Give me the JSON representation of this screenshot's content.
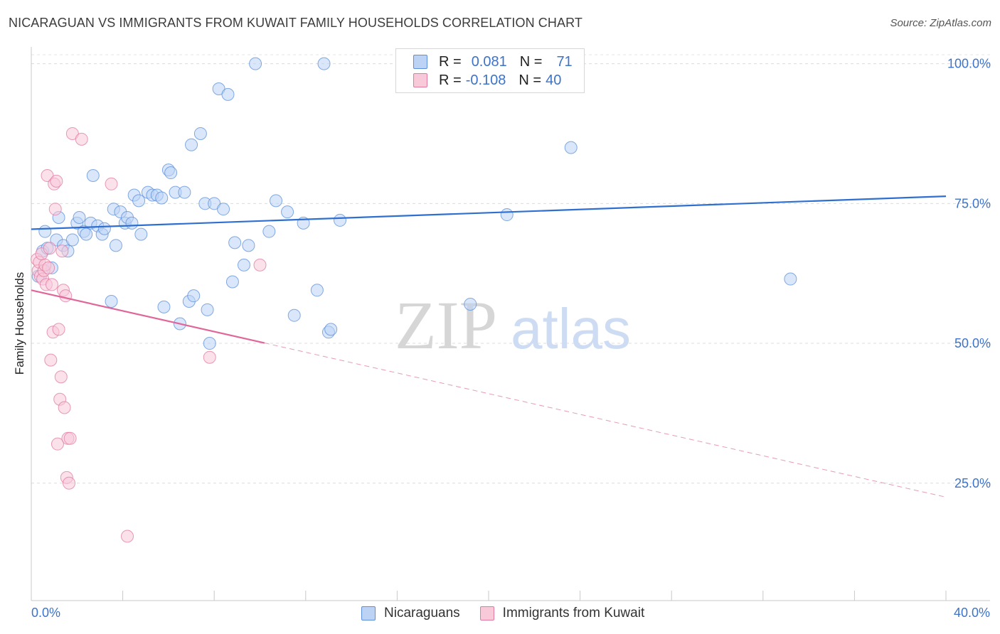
{
  "title": "NICARAGUAN VS IMMIGRANTS FROM KUWAIT FAMILY HOUSEHOLDS CORRELATION CHART",
  "source": "Source: ZipAtlas.com",
  "watermark": {
    "zip": "ZIP",
    "atlas": "atlas"
  },
  "legend": {
    "r_label": "R =",
    "n_label": "N =",
    "rows": [
      {
        "r": "0.081",
        "n": "71",
        "color": "#5b8fd9",
        "fill": "#bcd3f5"
      },
      {
        "r": "-0.108",
        "n": "40",
        "color": "#e07aa0",
        "fill": "#f8c9d8"
      }
    ]
  },
  "bottom_legend": [
    "Nicaraguans",
    "Immigrants from Kuwait"
  ],
  "chart_data": {
    "type": "scatter",
    "title": "NICARAGUAN VS IMMIGRANTS FROM KUWAIT FAMILY HOUSEHOLDS CORRELATION CHART",
    "xlabel": "",
    "ylabel": "Family Households",
    "xlim": [
      0,
      40
    ],
    "ylim": [
      4,
      103
    ],
    "x_tick_labels": [
      "0.0%",
      "40.0%"
    ],
    "y_ticks": [
      25,
      50,
      75,
      100
    ],
    "y_tick_labels": [
      "25.0%",
      "50.0%",
      "75.0%",
      "100.0%"
    ],
    "series": [
      {
        "name": "Nicaraguans",
        "color": "#5b8fd9",
        "fill": "#bcd3f5",
        "trend": {
          "x0": 0,
          "y0": 70.4,
          "x1": 40,
          "y1": 76.3,
          "dash_from": 40
        },
        "points": [
          [
            0.3,
            62
          ],
          [
            0.5,
            66.5
          ],
          [
            0.6,
            70
          ],
          [
            0.7,
            67
          ],
          [
            0.9,
            63.5
          ],
          [
            1.1,
            68.5
          ],
          [
            1.2,
            72.5
          ],
          [
            1.4,
            67.5
          ],
          [
            1.6,
            66.5
          ],
          [
            1.8,
            68.5
          ],
          [
            2.0,
            71.5
          ],
          [
            2.1,
            72.5
          ],
          [
            2.3,
            70
          ],
          [
            2.4,
            69.5
          ],
          [
            2.6,
            71.5
          ],
          [
            2.7,
            80
          ],
          [
            2.9,
            71
          ],
          [
            3.1,
            69.5
          ],
          [
            3.2,
            70.5
          ],
          [
            3.5,
            57.5
          ],
          [
            3.6,
            74
          ],
          [
            3.7,
            67.5
          ],
          [
            3.9,
            73.5
          ],
          [
            4.1,
            71.5
          ],
          [
            4.2,
            72.5
          ],
          [
            4.4,
            71.5
          ],
          [
            4.5,
            76.5
          ],
          [
            4.7,
            75.5
          ],
          [
            4.8,
            69.5
          ],
          [
            5.1,
            77
          ],
          [
            5.3,
            76.5
          ],
          [
            5.5,
            76.5
          ],
          [
            5.7,
            76
          ],
          [
            5.8,
            56.5
          ],
          [
            6.0,
            81
          ],
          [
            6.1,
            80.5
          ],
          [
            6.3,
            77
          ],
          [
            6.5,
            53.5
          ],
          [
            6.7,
            77
          ],
          [
            6.9,
            57.5
          ],
          [
            7.0,
            85.5
          ],
          [
            7.1,
            58.5
          ],
          [
            7.4,
            87.5
          ],
          [
            7.6,
            75
          ],
          [
            7.7,
            56
          ],
          [
            7.8,
            50
          ],
          [
            8.0,
            75
          ],
          [
            8.2,
            95.5
          ],
          [
            8.4,
            74
          ],
          [
            8.6,
            94.5
          ],
          [
            8.8,
            61
          ],
          [
            8.9,
            68
          ],
          [
            9.3,
            64
          ],
          [
            9.5,
            67.5
          ],
          [
            9.8,
            100
          ],
          [
            10.4,
            70
          ],
          [
            10.7,
            75.5
          ],
          [
            11.2,
            73.5
          ],
          [
            11.5,
            55
          ],
          [
            11.9,
            71.5
          ],
          [
            12.5,
            59.5
          ],
          [
            12.8,
            100
          ],
          [
            13.0,
            52
          ],
          [
            13.1,
            52.5
          ],
          [
            13.5,
            72
          ],
          [
            19.2,
            57
          ],
          [
            20.8,
            73
          ],
          [
            23.6,
            85
          ],
          [
            33.2,
            61.5
          ]
        ]
      },
      {
        "name": "Immigrants from Kuwait",
        "color": "#e07aa0",
        "fill": "#f8c9d8",
        "trend": {
          "x0": 0,
          "y0": 59.5,
          "x1": 40,
          "y1": 22.5,
          "dash_from": 10.2
        },
        "points": [
          [
            0.25,
            65
          ],
          [
            0.3,
            63
          ],
          [
            0.35,
            64.5
          ],
          [
            0.4,
            62
          ],
          [
            0.45,
            66
          ],
          [
            0.5,
            61.5
          ],
          [
            0.55,
            63
          ],
          [
            0.6,
            64
          ],
          [
            0.65,
            60.5
          ],
          [
            0.7,
            80
          ],
          [
            0.75,
            63.5
          ],
          [
            0.8,
            67
          ],
          [
            0.85,
            47
          ],
          [
            0.9,
            60.5
          ],
          [
            0.95,
            52
          ],
          [
            1.0,
            78.5
          ],
          [
            1.05,
            74
          ],
          [
            1.1,
            79
          ],
          [
            1.15,
            32
          ],
          [
            1.2,
            52.5
          ],
          [
            1.25,
            40
          ],
          [
            1.3,
            44
          ],
          [
            1.35,
            66.5
          ],
          [
            1.4,
            59.5
          ],
          [
            1.45,
            38.5
          ],
          [
            1.5,
            58.5
          ],
          [
            1.55,
            26
          ],
          [
            1.6,
            33
          ],
          [
            1.65,
            25
          ],
          [
            1.7,
            33
          ],
          [
            1.8,
            87.5
          ],
          [
            2.2,
            86.5
          ],
          [
            3.5,
            78.5
          ],
          [
            4.2,
            15.5
          ],
          [
            7.8,
            47.5
          ],
          [
            10.0,
            64
          ]
        ]
      }
    ]
  }
}
